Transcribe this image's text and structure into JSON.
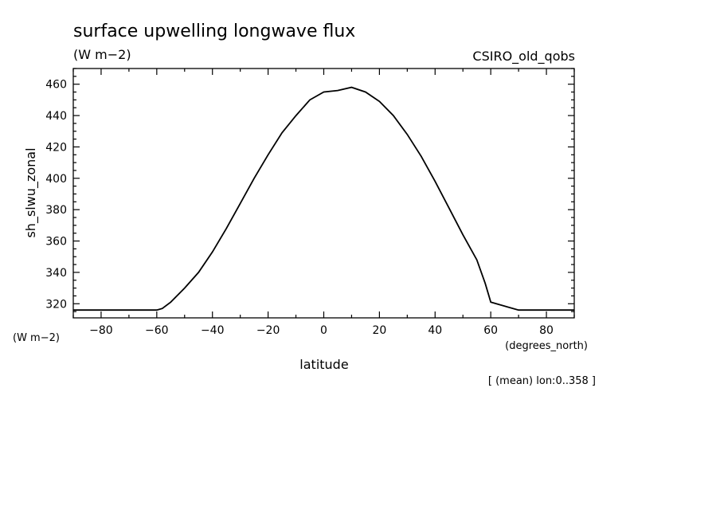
{
  "chart_data": {
    "type": "line",
    "title": "surface upwelling longwave flux",
    "units": "(W m−2)",
    "dataset": "CSIRO_old_qobs",
    "ylabel": "sh_slwu_zonal",
    "y_units_label": "(W m−2)",
    "xlabel": "latitude",
    "x_units_label": "(degrees_north)",
    "footnote": "[ (mean) lon:0..358 ]",
    "xlim": [
      -90,
      90
    ],
    "ylim": [
      311,
      470
    ],
    "xticks": [
      -80,
      -60,
      -40,
      -20,
      0,
      20,
      40,
      60,
      80
    ],
    "xtick_labels": [
      "−80",
      "−60",
      "−40",
      "−20",
      "0",
      "20",
      "40",
      "60",
      "80"
    ],
    "yticks": [
      320,
      340,
      360,
      380,
      400,
      420,
      440,
      460
    ],
    "ytick_labels": [
      "320",
      "340",
      "360",
      "380",
      "400",
      "420",
      "440",
      "460"
    ],
    "grid": false,
    "series": [
      {
        "x": [
          -90,
          -80,
          -70,
          -60,
          -58,
          -55,
          -50,
          -45,
          -40,
          -35,
          -30,
          -25,
          -20,
          -15,
          -10,
          -5,
          0,
          5,
          10,
          15,
          20,
          25,
          30,
          35,
          40,
          45,
          50,
          55,
          58,
          60,
          70,
          80,
          90
        ],
        "y": [
          316,
          316,
          316,
          316,
          317,
          321,
          330,
          340,
          353,
          368,
          384,
          400,
          415,
          429,
          440,
          450,
          455,
          456,
          458,
          455,
          449,
          440,
          428,
          414,
          398,
          381,
          364,
          348,
          333,
          321,
          316,
          316,
          316
        ]
      }
    ]
  }
}
